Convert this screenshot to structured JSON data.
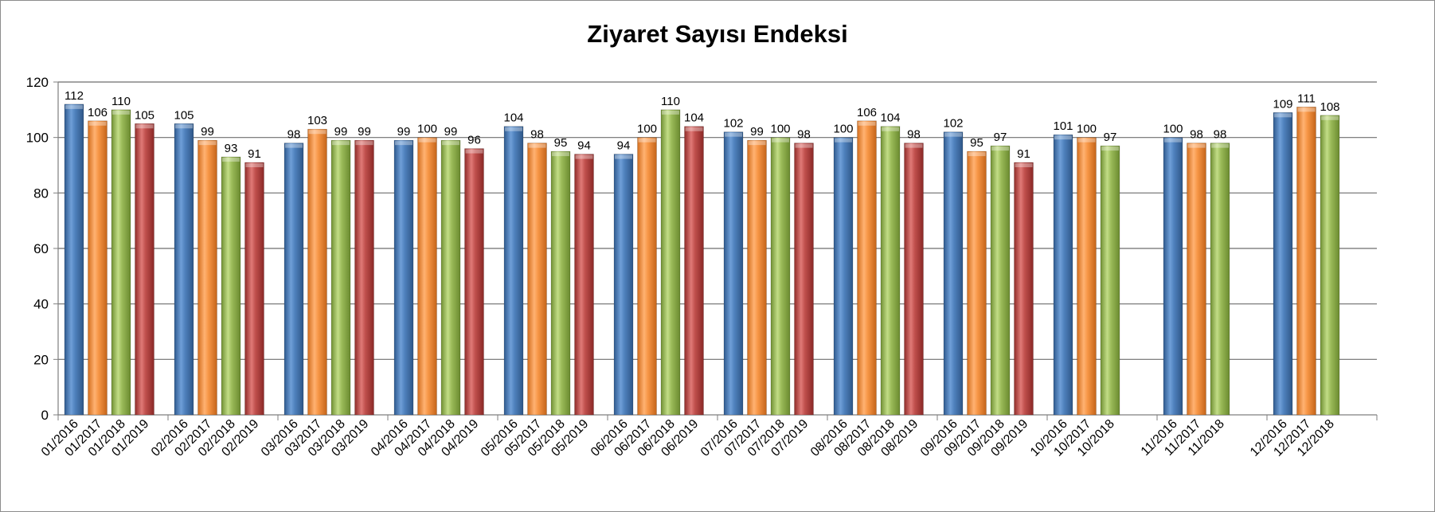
{
  "chart_data": {
    "type": "bar",
    "title": "Ziyaret Sayısı Endeksi",
    "ylim": [
      0,
      120
    ],
    "y_ticks": [
      0,
      20,
      40,
      60,
      80,
      100,
      120
    ],
    "grid": true,
    "legend": "none",
    "colors": [
      "#4f81bd",
      "#f79646",
      "#9bbb59",
      "#c0504d"
    ],
    "groups": [
      {
        "bars": [
          {
            "label": "01/2016",
            "value": 112
          },
          {
            "label": "01/2017",
            "value": 106
          },
          {
            "label": "01/2018",
            "value": 110
          },
          {
            "label": "01/2019",
            "value": 105
          }
        ]
      },
      {
        "bars": [
          {
            "label": "02/2016",
            "value": 105
          },
          {
            "label": "02/2017",
            "value": 99
          },
          {
            "label": "02/2018",
            "value": 93
          },
          {
            "label": "02/2019",
            "value": 91
          }
        ]
      },
      {
        "bars": [
          {
            "label": "03/2016",
            "value": 98
          },
          {
            "label": "03/2017",
            "value": 103
          },
          {
            "label": "03/2018",
            "value": 99
          },
          {
            "label": "03/2019",
            "value": 99
          }
        ]
      },
      {
        "bars": [
          {
            "label": "04/2016",
            "value": 99
          },
          {
            "label": "04/2017",
            "value": 100
          },
          {
            "label": "04/2018",
            "value": 99
          },
          {
            "label": "04/2019",
            "value": 96
          }
        ]
      },
      {
        "bars": [
          {
            "label": "05/2016",
            "value": 104
          },
          {
            "label": "05/2017",
            "value": 98
          },
          {
            "label": "05/2018",
            "value": 95
          },
          {
            "label": "05/2019",
            "value": 94
          }
        ]
      },
      {
        "bars": [
          {
            "label": "06/2016",
            "value": 94
          },
          {
            "label": "06/2017",
            "value": 100
          },
          {
            "label": "06/2018",
            "value": 110
          },
          {
            "label": "06/2019",
            "value": 104
          }
        ]
      },
      {
        "bars": [
          {
            "label": "07/2016",
            "value": 102
          },
          {
            "label": "07/2017",
            "value": 99
          },
          {
            "label": "07/2018",
            "value": 100
          },
          {
            "label": "07/2019",
            "value": 98
          }
        ]
      },
      {
        "bars": [
          {
            "label": "08/2016",
            "value": 100
          },
          {
            "label": "08/2017",
            "value": 106
          },
          {
            "label": "08/2018",
            "value": 104
          },
          {
            "label": "08/2019",
            "value": 98
          }
        ]
      },
      {
        "bars": [
          {
            "label": "09/2016",
            "value": 102
          },
          {
            "label": "09/2017",
            "value": 95
          },
          {
            "label": "09/2018",
            "value": 97
          },
          {
            "label": "09/2019",
            "value": 91
          }
        ]
      },
      {
        "bars": [
          {
            "label": "10/2016",
            "value": 101
          },
          {
            "label": "10/2017",
            "value": 100
          },
          {
            "label": "10/2018",
            "value": 97
          }
        ]
      },
      {
        "bars": [
          {
            "label": "11/2016",
            "value": 100
          },
          {
            "label": "11/2017",
            "value": 98
          },
          {
            "label": "11/2018",
            "value": 98
          }
        ]
      },
      {
        "bars": [
          {
            "label": "12/2016",
            "value": 109
          },
          {
            "label": "12/2017",
            "value": 111
          },
          {
            "label": "12/2018",
            "value": 108
          }
        ]
      }
    ]
  }
}
